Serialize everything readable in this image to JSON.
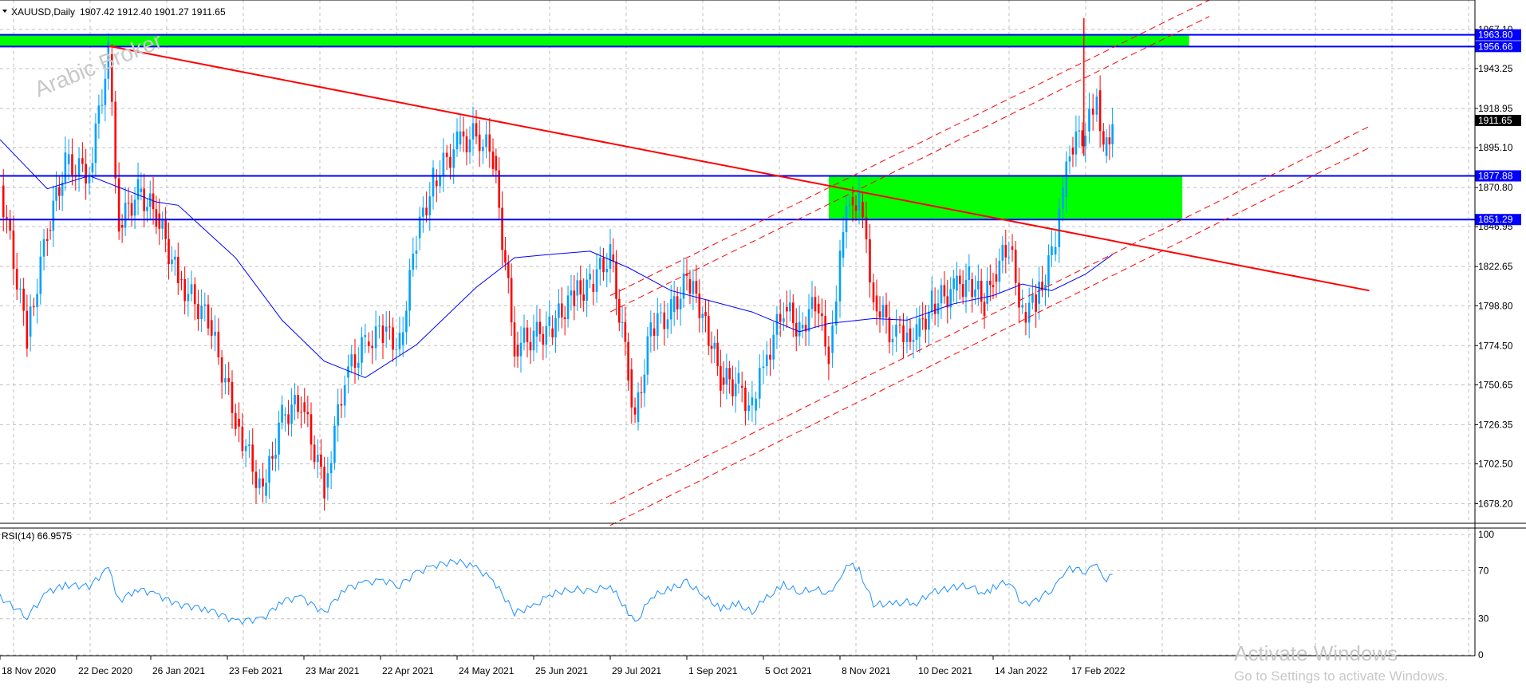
{
  "chart_data": [
    {
      "type": "candlestick",
      "symbol_label": "XAUUSD,Daily",
      "ohlc_label": "1907.42 1912.40 1901.27 1911.65",
      "watermark": "Arabic Broker",
      "ylim": [
        1666.3,
        1985.0
      ],
      "y_ticks": [
        "1967.10",
        "1943.25",
        "1918.95",
        "1895.10",
        "1870.80",
        "1846.95",
        "1822.65",
        "1798.80",
        "1774.50",
        "1750.65",
        "1726.35",
        "1702.50",
        "1678.20"
      ],
      "y_tick_values": [
        1967.1,
        1943.25,
        1918.95,
        1895.1,
        1870.8,
        1846.95,
        1822.65,
        1798.8,
        1774.5,
        1750.65,
        1726.35,
        1702.5,
        1678.2
      ],
      "x_labels": [
        "18 Nov 2020",
        "22 Dec 2020",
        "26 Jan 2021",
        "23 Feb 2021",
        "23 Mar 2021",
        "22 Apr 2021",
        "24 May 2021",
        "25 Jun 2021",
        "29 Jul 2021",
        "1 Sep 2021",
        "5 Oct 2021",
        "8 Nov 2021",
        "10 Dec 2021",
        "14 Jan 2022",
        "17 Feb 2022"
      ],
      "up_color": "#00a0ff",
      "down_color": "#ff0000",
      "ma_color": "#0000ff",
      "close_points": [
        {
          "x": "18 Nov 2020",
          "y": 1872
        },
        {
          "x": "30 Nov 2020",
          "y": 1780
        },
        {
          "x": "9 Dec 2020",
          "y": 1845
        },
        {
          "x": "17 Dec 2020",
          "y": 1885
        },
        {
          "x": "28 Dec 2020",
          "y": 1880
        },
        {
          "x": "6 Jan 2021",
          "y": 1952
        },
        {
          "x": "11 Jan 2021",
          "y": 1848
        },
        {
          "x": "20 Jan 2021",
          "y": 1868
        },
        {
          "x": "28 Jan 2021",
          "y": 1855
        },
        {
          "x": "5 Feb 2021",
          "y": 1815
        },
        {
          "x": "16 Feb 2021",
          "y": 1790
        },
        {
          "x": "26 Feb 2021",
          "y": 1730
        },
        {
          "x": "8 Mar 2021",
          "y": 1683
        },
        {
          "x": "15 Mar 2021",
          "y": 1732
        },
        {
          "x": "22 Mar 2021",
          "y": 1740
        },
        {
          "x": "31 Mar 2021",
          "y": 1688
        },
        {
          "x": "8 Apr 2021",
          "y": 1755
        },
        {
          "x": "16 Apr 2021",
          "y": 1777
        },
        {
          "x": "23 Apr 2021",
          "y": 1783
        },
        {
          "x": "30 Apr 2021",
          "y": 1775
        },
        {
          "x": "7 May 2021",
          "y": 1840
        },
        {
          "x": "14 May 2021",
          "y": 1875
        },
        {
          "x": "24 May 2021",
          "y": 1897
        },
        {
          "x": "1 Jun 2021",
          "y": 1903
        },
        {
          "x": "8 Jun 2021",
          "y": 1890
        },
        {
          "x": "17 Jun 2021",
          "y": 1775
        },
        {
          "x": "25 Jun 2021",
          "y": 1780
        },
        {
          "x": "2 Jul 2021",
          "y": 1785
        },
        {
          "x": "13 Jul 2021",
          "y": 1805
        },
        {
          "x": "20 Jul 2021",
          "y": 1812
        },
        {
          "x": "29 Jul 2021",
          "y": 1830
        },
        {
          "x": "6 Aug 2021",
          "y": 1760
        },
        {
          "x": "9 Aug 2021",
          "y": 1728
        },
        {
          "x": "16 Aug 2021",
          "y": 1785
        },
        {
          "x": "25 Aug 2021",
          "y": 1795
        },
        {
          "x": "1 Sep 2021",
          "y": 1815
        },
        {
          "x": "8 Sep 2021",
          "y": 1795
        },
        {
          "x": "16 Sep 2021",
          "y": 1755
        },
        {
          "x": "24 Sep 2021",
          "y": 1750
        },
        {
          "x": "30 Sep 2021",
          "y": 1735
        },
        {
          "x": "5 Oct 2021",
          "y": 1762
        },
        {
          "x": "14 Oct 2021",
          "y": 1798
        },
        {
          "x": "21 Oct 2021",
          "y": 1785
        },
        {
          "x": "28 Oct 2021",
          "y": 1800
        },
        {
          "x": "3 Nov 2021",
          "y": 1770
        },
        {
          "x": "8 Nov 2021",
          "y": 1828
        },
        {
          "x": "12 Nov 2021",
          "y": 1865
        },
        {
          "x": "16 Nov 2021",
          "y": 1862
        },
        {
          "x": "22 Nov 2021",
          "y": 1805
        },
        {
          "x": "30 Nov 2021",
          "y": 1780
        },
        {
          "x": "6 Dec 2021",
          "y": 1785
        },
        {
          "x": "10 Dec 2021",
          "y": 1780
        },
        {
          "x": "17 Dec 2021",
          "y": 1800
        },
        {
          "x": "27 Dec 2021",
          "y": 1808
        },
        {
          "x": "3 Jan 2022",
          "y": 1815
        },
        {
          "x": "10 Jan 2022",
          "y": 1800
        },
        {
          "x": "14 Jan 2022",
          "y": 1818
        },
        {
          "x": "21 Jan 2022",
          "y": 1835
        },
        {
          "x": "27 Jan 2022",
          "y": 1795
        },
        {
          "x": "2 Feb 2022",
          "y": 1800
        },
        {
          "x": "9 Feb 2022",
          "y": 1830
        },
        {
          "x": "14 Feb 2022",
          "y": 1865
        },
        {
          "x": "17 Feb 2022",
          "y": 1895
        },
        {
          "x": "24 Feb 2022",
          "y": 1905
        },
        {
          "x": "1 Mar 2022",
          "y": 1930
        },
        {
          "x": "4 Mar 2022",
          "y": 1890
        },
        {
          "x": "8 Mar 2022",
          "y": 1911.65
        }
      ],
      "moving_average": [
        {
          "x": "18 Nov 2020",
          "y": 1900
        },
        {
          "x": "9 Dec 2020",
          "y": 1870
        },
        {
          "x": "28 Dec 2020",
          "y": 1878
        },
        {
          "x": "28 Jan 2021",
          "y": 1862
        },
        {
          "x": "5 Feb 2021",
          "y": 1860
        },
        {
          "x": "26 Feb 2021",
          "y": 1828
        },
        {
          "x": "15 Mar 2021",
          "y": 1790
        },
        {
          "x": "31 Mar 2021",
          "y": 1765
        },
        {
          "x": "16 Apr 2021",
          "y": 1755
        },
        {
          "x": "7 May 2021",
          "y": 1775
        },
        {
          "x": "1 Jun 2021",
          "y": 1810
        },
        {
          "x": "17 Jun 2021",
          "y": 1828
        },
        {
          "x": "2 Jul 2021",
          "y": 1830
        },
        {
          "x": "20 Jul 2021",
          "y": 1832
        },
        {
          "x": "6 Aug 2021",
          "y": 1822
        },
        {
          "x": "25 Aug 2021",
          "y": 1808
        },
        {
          "x": "8 Sep 2021",
          "y": 1803
        },
        {
          "x": "30 Sep 2021",
          "y": 1795
        },
        {
          "x": "21 Oct 2021",
          "y": 1783
        },
        {
          "x": "3 Nov 2021",
          "y": 1788
        },
        {
          "x": "22 Nov 2021",
          "y": 1791
        },
        {
          "x": "6 Dec 2021",
          "y": 1790
        },
        {
          "x": "27 Dec 2021",
          "y": 1800
        },
        {
          "x": "14 Jan 2022",
          "y": 1805
        },
        {
          "x": "27 Jan 2022",
          "y": 1812
        },
        {
          "x": "9 Feb 2022",
          "y": 1808
        },
        {
          "x": "24 Feb 2022",
          "y": 1818
        },
        {
          "x": "8 Mar 2022",
          "y": 1830
        }
      ],
      "horizontal_lines": [
        {
          "label": "1963.80",
          "value": 1963.8,
          "color": "#0000ff"
        },
        {
          "label": "1956.66",
          "value": 1956.66,
          "color": "#0000ff"
        },
        {
          "label": "1877.88",
          "value": 1877.88,
          "color": "#0000ff"
        },
        {
          "label": "1851.29",
          "value": 1851.29,
          "color": "#0000ff"
        }
      ],
      "zones": [
        {
          "from_x": "18 Nov 2020",
          "to_x": "11 Apr 2022",
          "low": 1956.66,
          "high": 1963.8,
          "color": "#00ff00"
        },
        {
          "from_x": "3 Nov 2021",
          "to_x": "8 Apr 2022",
          "low": 1851.29,
          "high": 1877.88,
          "color": "#00ff00"
        }
      ],
      "trendlines": [
        {
          "from": {
            "x": "6 Jan 2021",
            "y": 1957
          },
          "to": {
            "x": "30 Jun 2022",
            "y": 1808
          },
          "color": "#ff0000",
          "style": "solid"
        },
        {
          "from": {
            "x": "29 Jul 2021",
            "y": 1678
          },
          "to": {
            "x": "30 Jun 2022",
            "y": 1908
          },
          "color": "#ff0000",
          "style": "dashed"
        },
        {
          "from": {
            "x": "29 Jul 2021",
            "y": 1665
          },
          "to": {
            "x": "30 Jun 2022",
            "y": 1895
          },
          "color": "#ff0000",
          "style": "dashed"
        },
        {
          "from": {
            "x": "29 Jul 2021",
            "y": 1805
          },
          "to": {
            "x": "20 Apr 2022",
            "y": 1985
          },
          "color": "#ff0000",
          "style": "dashed"
        },
        {
          "from": {
            "x": "29 Jul 2021",
            "y": 1795
          },
          "to": {
            "x": "20 Apr 2022",
            "y": 1975
          },
          "color": "#ff0000",
          "style": "dashed"
        }
      ],
      "current_price_label": "1911.65",
      "current_price": 1911.65
    },
    {
      "type": "line",
      "title": "RSI(14) 66.9575",
      "ylim": [
        0,
        100
      ],
      "y_ticks": [
        "100",
        "70",
        "30",
        "0"
      ],
      "y_tick_values": [
        100,
        70,
        30,
        0
      ],
      "levels": [
        70,
        30
      ],
      "line_color": "#1e90ff",
      "points": [
        {
          "x": "18 Nov 2020",
          "y": 48
        },
        {
          "x": "30 Nov 2020",
          "y": 32
        },
        {
          "x": "9 Dec 2020",
          "y": 52
        },
        {
          "x": "17 Dec 2020",
          "y": 58
        },
        {
          "x": "28 Dec 2020",
          "y": 57
        },
        {
          "x": "6 Jan 2021",
          "y": 72
        },
        {
          "x": "11 Jan 2021",
          "y": 45
        },
        {
          "x": "20 Jan 2021",
          "y": 55
        },
        {
          "x": "28 Jan 2021",
          "y": 50
        },
        {
          "x": "5 Feb 2021",
          "y": 42
        },
        {
          "x": "16 Feb 2021",
          "y": 38
        },
        {
          "x": "26 Feb 2021",
          "y": 28
        },
        {
          "x": "8 Mar 2021",
          "y": 30
        },
        {
          "x": "15 Mar 2021",
          "y": 45
        },
        {
          "x": "22 Mar 2021",
          "y": 48
        },
        {
          "x": "31 Mar 2021",
          "y": 35
        },
        {
          "x": "8 Apr 2021",
          "y": 55
        },
        {
          "x": "16 Apr 2021",
          "y": 60
        },
        {
          "x": "23 Apr 2021",
          "y": 62
        },
        {
          "x": "30 Apr 2021",
          "y": 58
        },
        {
          "x": "7 May 2021",
          "y": 68
        },
        {
          "x": "14 May 2021",
          "y": 74
        },
        {
          "x": "24 May 2021",
          "y": 78
        },
        {
          "x": "1 Jun 2021",
          "y": 72
        },
        {
          "x": "8 Jun 2021",
          "y": 62
        },
        {
          "x": "17 Jun 2021",
          "y": 35
        },
        {
          "x": "25 Jun 2021",
          "y": 40
        },
        {
          "x": "2 Jul 2021",
          "y": 50
        },
        {
          "x": "13 Jul 2021",
          "y": 55
        },
        {
          "x": "20 Jul 2021",
          "y": 52
        },
        {
          "x": "29 Jul 2021",
          "y": 58
        },
        {
          "x": "6 Aug 2021",
          "y": 35
        },
        {
          "x": "9 Aug 2021",
          "y": 25
        },
        {
          "x": "16 Aug 2021",
          "y": 48
        },
        {
          "x": "25 Aug 2021",
          "y": 55
        },
        {
          "x": "1 Sep 2021",
          "y": 60
        },
        {
          "x": "8 Sep 2021",
          "y": 50
        },
        {
          "x": "16 Sep 2021",
          "y": 38
        },
        {
          "x": "24 Sep 2021",
          "y": 42
        },
        {
          "x": "30 Sep 2021",
          "y": 35
        },
        {
          "x": "5 Oct 2021",
          "y": 45
        },
        {
          "x": "14 Oct 2021",
          "y": 58
        },
        {
          "x": "21 Oct 2021",
          "y": 52
        },
        {
          "x": "28 Oct 2021",
          "y": 55
        },
        {
          "x": "3 Nov 2021",
          "y": 50
        },
        {
          "x": "8 Nov 2021",
          "y": 65
        },
        {
          "x": "12 Nov 2021",
          "y": 75
        },
        {
          "x": "16 Nov 2021",
          "y": 70
        },
        {
          "x": "22 Nov 2021",
          "y": 42
        },
        {
          "x": "30 Nov 2021",
          "y": 42
        },
        {
          "x": "6 Dec 2021",
          "y": 44
        },
        {
          "x": "10 Dec 2021",
          "y": 43
        },
        {
          "x": "17 Dec 2021",
          "y": 52
        },
        {
          "x": "27 Dec 2021",
          "y": 56
        },
        {
          "x": "3 Jan 2022",
          "y": 58
        },
        {
          "x": "10 Jan 2022",
          "y": 50
        },
        {
          "x": "14 Jan 2022",
          "y": 56
        },
        {
          "x": "21 Jan 2022",
          "y": 62
        },
        {
          "x": "27 Jan 2022",
          "y": 42
        },
        {
          "x": "2 Feb 2022",
          "y": 45
        },
        {
          "x": "9 Feb 2022",
          "y": 55
        },
        {
          "x": "14 Feb 2022",
          "y": 64
        },
        {
          "x": "17 Feb 2022",
          "y": 72
        },
        {
          "x": "24 Feb 2022",
          "y": 70
        },
        {
          "x": "1 Mar 2022",
          "y": 74
        },
        {
          "x": "4 Mar 2022",
          "y": 62
        },
        {
          "x": "8 Mar 2022",
          "y": 66.9575
        }
      ]
    }
  ],
  "overlay": {
    "activate_title": "Activate Windows",
    "activate_sub": "Go to Settings to activate Windows."
  }
}
